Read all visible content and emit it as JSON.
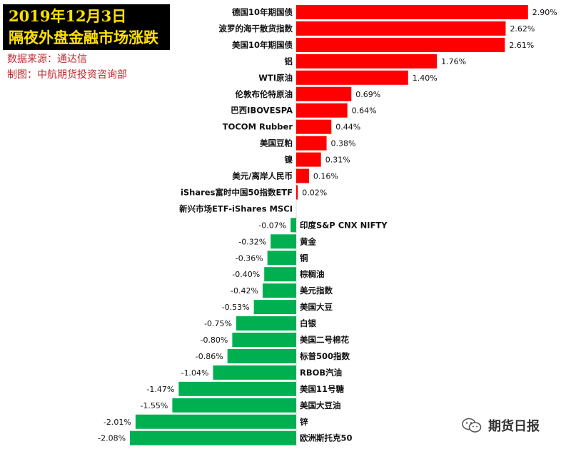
{
  "title": {
    "line1": "2019年12月3日",
    "line2": "隔夜外盘金融市场涨跌"
  },
  "source": "数据来源：通达信",
  "maker": "制图：中航期货投资咨询部",
  "watermark": "期货日报",
  "colors": {
    "positive": "#ff0000",
    "negative": "#00b050",
    "title_bg": "#000000",
    "title_fg": "#ffe100",
    "note": "#c0282e"
  },
  "chart_data": {
    "type": "bar",
    "orientation": "horizontal",
    "categories": [
      "德国10年期国债",
      "波罗的海干散货指数",
      "美国10年期国债",
      "铝",
      "WTI原油",
      "伦敦布伦特原油",
      "巴西IBOVESPA",
      "TOCOM Rubber",
      "美国豆粕",
      "镍",
      "美元/离岸人民币",
      "iShares富时中国50指数ETF",
      "新兴市场ETF-iShares MSCI",
      "印度S&P CNX NIFTY",
      "黄金",
      "铜",
      "棕榈油",
      "美元指数",
      "美国大豆",
      "白银",
      "美国二号棉花",
      "标普500指数",
      "RBOB汽油",
      "美国11号糖",
      "美国大豆油",
      "锌",
      "欧洲斯托克50"
    ],
    "values": [
      2.9,
      2.62,
      2.61,
      1.76,
      1.4,
      0.69,
      0.64,
      0.44,
      0.38,
      0.31,
      0.16,
      0.02,
      0.0,
      -0.07,
      -0.32,
      -0.36,
      -0.4,
      -0.42,
      -0.53,
      -0.75,
      -0.8,
      -0.86,
      -1.04,
      -1.47,
      -1.55,
      -2.01,
      -2.08
    ],
    "value_labels": [
      "2.90%",
      "2.62%",
      "2.61%",
      "1.76%",
      "1.40%",
      "0.69%",
      "0.64%",
      "0.44%",
      "0.38%",
      "0.31%",
      "0.16%",
      "0.02%",
      "",
      "-0.07%",
      "-0.32%",
      "-0.36%",
      "-0.40%",
      "-0.42%",
      "-0.53%",
      "-0.75%",
      "-0.80%",
      "-0.86%",
      "-1.04%",
      "-1.47%",
      "-1.55%",
      "-2.01%",
      "-2.08%"
    ],
    "unit": "%",
    "title": "",
    "xlabel": "",
    "ylabel": ""
  }
}
